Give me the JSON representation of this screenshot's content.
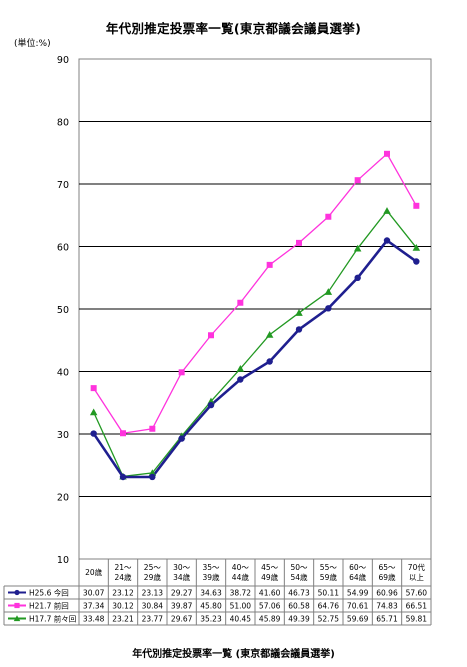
{
  "title": "年代別推定投票率一覧(東京都議会議員選挙)",
  "unit_label": "(単位:%)",
  "caption": "年代別推定投票率一覧 (東京都議会議員選挙)",
  "chart_data": {
    "type": "line",
    "title": "年代別推定投票率一覧(東京都議会議員選挙)",
    "ylabel": "(単位:%)",
    "xlabel": "",
    "ylim": [
      10,
      90
    ],
    "yticks": [
      10,
      20,
      30,
      40,
      50,
      60,
      70,
      80,
      90
    ],
    "grid": true,
    "legend": "data-table-left",
    "categories": [
      [
        "20歳"
      ],
      [
        "21～",
        "24歳"
      ],
      [
        "25～",
        "29歳"
      ],
      [
        "30～",
        "34歳"
      ],
      [
        "35～",
        "39歳"
      ],
      [
        "40～",
        "44歳"
      ],
      [
        "45～",
        "49歳"
      ],
      [
        "50～",
        "54歳"
      ],
      [
        "55～",
        "59歳"
      ],
      [
        "60～",
        "64歳"
      ],
      [
        "65～",
        "69歳"
      ],
      [
        "70代",
        "以上"
      ]
    ],
    "series": [
      {
        "name": "H25.6 今回",
        "color": "#1f1f8f",
        "marker": "circle",
        "values": [
          30.07,
          23.12,
          23.13,
          29.27,
          34.63,
          38.72,
          41.6,
          46.73,
          50.11,
          54.99,
          60.96,
          57.6
        ],
        "labels": [
          "30.07",
          "23.12",
          "23.13",
          "29.27",
          "34.63",
          "38.72",
          "41.60",
          "46.73",
          "50.11",
          "54.99",
          "60.96",
          "57.60"
        ]
      },
      {
        "name": "H21.7 前回",
        "color": "#ff33dd",
        "marker": "square",
        "values": [
          37.34,
          30.12,
          30.84,
          39.87,
          45.8,
          51.0,
          57.06,
          60.58,
          64.76,
          70.61,
          74.83,
          66.51
        ],
        "labels": [
          "37.34",
          "30.12",
          "30.84",
          "39.87",
          "45.80",
          "51.00",
          "57.06",
          "60.58",
          "64.76",
          "70.61",
          "74.83",
          "66.51"
        ]
      },
      {
        "name": "H17.7 前々回",
        "color": "#229922",
        "marker": "triangle",
        "values": [
          33.48,
          23.21,
          23.77,
          29.67,
          35.23,
          40.45,
          45.89,
          49.39,
          52.75,
          59.69,
          65.71,
          59.81
        ],
        "labels": [
          "33.48",
          "23.21",
          "23.77",
          "29.67",
          "35.23",
          "40.45",
          "45.89",
          "49.39",
          "52.75",
          "59.69",
          "65.71",
          "59.81"
        ]
      }
    ]
  }
}
